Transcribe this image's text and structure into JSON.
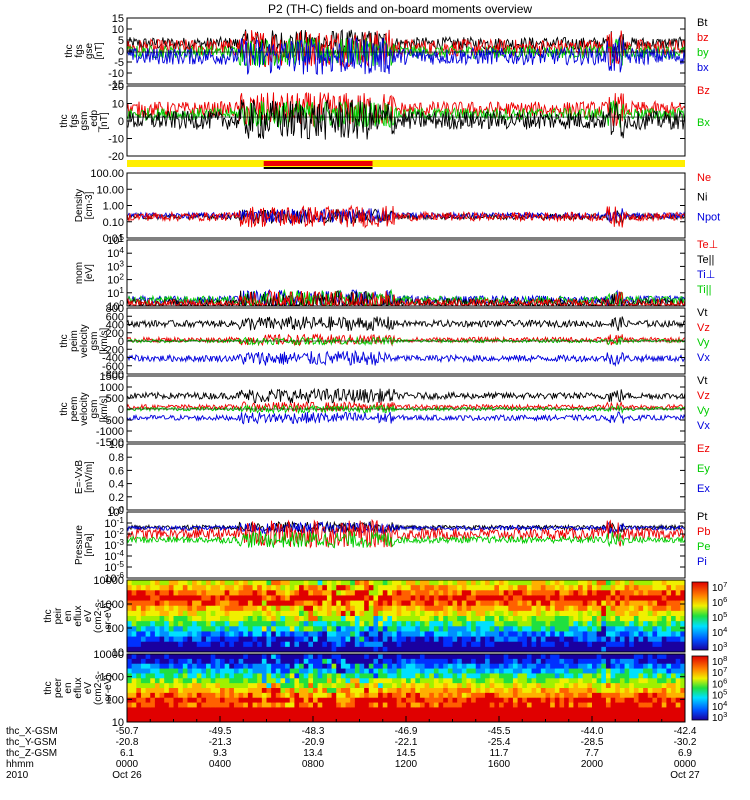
{
  "title": "P2 (TH-C) fields and on-board moments overview",
  "colors": {
    "black": "#000000",
    "red": "#ee0000",
    "green": "#00cc00",
    "blue": "#0000dd",
    "yellow": "#ffee00",
    "frame": "#000000"
  },
  "chart_data": [
    {
      "type": "line",
      "id": "p1",
      "ylabel": [
        "thc",
        "fgs",
        "gse",
        "[nT]"
      ],
      "yticks": [
        "15",
        "10",
        "5",
        "0",
        "-5",
        "-10",
        "-15"
      ],
      "ylim": [
        -15,
        16
      ],
      "legend": [
        {
          "name": "Bt",
          "color": "#000000"
        },
        {
          "name": "bz",
          "color": "#ee0000"
        },
        {
          "name": "by",
          "color": "#00cc00"
        },
        {
          "name": "bx",
          "color": "#0000dd"
        }
      ],
      "series": [
        {
          "name": "Bt",
          "color": "#000000",
          "base": 4,
          "amp": 3
        },
        {
          "name": "bz",
          "color": "#ee0000",
          "base": 2,
          "amp": 4
        },
        {
          "name": "by",
          "color": "#00cc00",
          "base": 0,
          "amp": 3
        },
        {
          "name": "bx",
          "color": "#0000dd",
          "base": -2,
          "amp": 4
        }
      ]
    },
    {
      "type": "line",
      "id": "p2",
      "ylabel": [
        "thc",
        "fgs",
        "gsm",
        "_edp",
        "[nT]"
      ],
      "yticks": [
        "20",
        "10",
        "0",
        "-10",
        "-20"
      ],
      "ylim": [
        -25,
        20
      ],
      "legend": [
        {
          "name": "Bz",
          "color": "#ee0000"
        },
        {
          "name": "Bx",
          "color": "#00cc00"
        }
      ],
      "series": [
        {
          "name": "Bz",
          "color": "#ee0000",
          "base": 5,
          "amp": 5
        },
        {
          "name": "Bx",
          "color": "#00cc00",
          "base": 2,
          "amp": 4
        },
        {
          "name": "B",
          "color": "#000000",
          "base": -2,
          "amp": 6
        }
      ]
    },
    {
      "type": "line",
      "id": "p3",
      "ylabel": [
        "Density",
        "[cm-3]"
      ],
      "scale": "log",
      "yticks": [
        "100.00",
        "10.00",
        "1.00",
        "0.10",
        "0.01"
      ],
      "ylim": [
        0.01,
        300
      ],
      "legend": [
        {
          "name": "Ne",
          "color": "#ee0000"
        },
        {
          "name": "Ni",
          "color": "#000000"
        },
        {
          "name": "Npot",
          "color": "#0000dd"
        }
      ],
      "series": [
        {
          "name": "Ni",
          "color": "#000000",
          "base": 0.3,
          "amp": 0.2
        },
        {
          "name": "Npot",
          "color": "#0000dd",
          "base": 0.35,
          "amp": 0.2
        },
        {
          "name": "Ne",
          "color": "#ee0000",
          "base": 0.3,
          "amp": 0.3
        }
      ]
    },
    {
      "type": "line",
      "id": "p4",
      "ylabel": [
        "mom",
        "[eV]"
      ],
      "scale": "log",
      "yticks": [
        "10^5",
        "10^4",
        "10^3",
        "10^2",
        "10^1",
        "10^0"
      ],
      "ylim": [
        1,
        100000
      ],
      "legend": [
        {
          "name": "Te⊥",
          "color": "#ee0000"
        },
        {
          "name": "Te||",
          "color": "#000000"
        },
        {
          "name": "Ti⊥",
          "color": "#0000dd"
        },
        {
          "name": "Ti||",
          "color": "#00cc00"
        }
      ],
      "series": [
        {
          "name": "Ti⊥",
          "color": "#0000dd",
          "base": 3.0,
          "amp": 0.3
        },
        {
          "name": "Ti||",
          "color": "#00cc00",
          "base": 2.8,
          "amp": 0.3
        },
        {
          "name": "Te||",
          "color": "#000000",
          "base": 1.5,
          "amp": 0.4
        },
        {
          "name": "Te⊥",
          "color": "#ee0000",
          "base": 1.4,
          "amp": 0.4
        }
      ]
    },
    {
      "type": "line",
      "id": "p5",
      "ylabel": [
        "thc",
        "peim",
        "velocity",
        "gsm",
        "[km/s]"
      ],
      "yticks": [
        "800",
        "600",
        "400",
        "200",
        "0",
        "-200",
        "-400",
        "-600",
        "-800"
      ],
      "ylim": [
        -800,
        800
      ],
      "legend": [
        {
          "name": "Vt",
          "color": "#000000"
        },
        {
          "name": "Vz",
          "color": "#ee0000"
        },
        {
          "name": "Vy",
          "color": "#00cc00"
        },
        {
          "name": "Vx",
          "color": "#0000dd"
        }
      ],
      "series": [
        {
          "name": "Vt",
          "color": "#000000",
          "base": 420,
          "amp": 80
        },
        {
          "name": "Vz",
          "color": "#ee0000",
          "base": 30,
          "amp": 60
        },
        {
          "name": "Vy",
          "color": "#00cc00",
          "base": 0,
          "amp": 40
        },
        {
          "name": "Vx",
          "color": "#0000dd",
          "base": -420,
          "amp": 80
        }
      ]
    },
    {
      "type": "line",
      "id": "p6",
      "ylabel": [
        "thc",
        "peem",
        "velocity",
        "gsm",
        "[km/s]"
      ],
      "yticks": [
        "1500",
        "1000",
        "500",
        "0",
        "-500",
        "-1000",
        "-1500"
      ],
      "ylim": [
        -1500,
        1500
      ],
      "legend": [
        {
          "name": "Vt",
          "color": "#000000"
        },
        {
          "name": "Vz",
          "color": "#ee0000"
        },
        {
          "name": "Vy",
          "color": "#00cc00"
        },
        {
          "name": "Vx",
          "color": "#0000dd"
        }
      ],
      "series": [
        {
          "name": "Vt",
          "color": "#000000",
          "base": 600,
          "amp": 150
        },
        {
          "name": "Vz",
          "color": "#ee0000",
          "base": 100,
          "amp": 100
        },
        {
          "name": "Vy",
          "color": "#00cc00",
          "base": 0,
          "amp": 80
        },
        {
          "name": "Vx",
          "color": "#0000dd",
          "base": -400,
          "amp": 120
        }
      ]
    },
    {
      "type": "line",
      "id": "p7",
      "ylabel": [
        "E=-VxB",
        "[mV/m]"
      ],
      "yticks": [
        "1.0",
        "0.8",
        "0.6",
        "0.4",
        "0.2",
        "0.0"
      ],
      "ylim": [
        0,
        1
      ],
      "legend": [
        {
          "name": "Ez",
          "color": "#ee0000"
        },
        {
          "name": "Ey",
          "color": "#00cc00"
        },
        {
          "name": "Ex",
          "color": "#0000dd"
        }
      ],
      "series": []
    },
    {
      "type": "line",
      "id": "p8",
      "ylabel": [
        "Pressure",
        "[nPa]"
      ],
      "scale": "log",
      "yticks": [
        "10^0",
        "10^-1",
        "10^-2",
        "10^-3",
        "10^-4",
        "10^-5",
        "10^-6"
      ],
      "ylim": [
        1e-06,
        1
      ],
      "legend": [
        {
          "name": "Pt",
          "color": "#000000"
        },
        {
          "name": "Pb",
          "color": "#ee0000"
        },
        {
          "name": "Pe",
          "color": "#00cc00"
        },
        {
          "name": "Pi",
          "color": "#0000dd"
        }
      ],
      "series": [
        {
          "name": "Pt",
          "color": "#000000",
          "base": 0.04,
          "amp": 0.2
        },
        {
          "name": "Pi",
          "color": "#0000dd",
          "base": 0.035,
          "amp": 0.2
        },
        {
          "name": "Pb",
          "color": "#ee0000",
          "base": 0.01,
          "amp": 0.5
        },
        {
          "name": "Pe",
          "color": "#00cc00",
          "base": 0.003,
          "amp": 0.3
        }
      ]
    },
    {
      "type": "heatmap",
      "id": "p9",
      "ylabel": [
        "thc",
        "peir",
        "en",
        "eflux",
        "eV",
        "(cm2-s-",
        "sr-eV)"
      ],
      "yticks": [
        "10000",
        "1000",
        "100",
        "10"
      ],
      "ylim": [
        5,
        30000
      ],
      "scale": "log",
      "colorbar": [
        "10^7",
        "10^6",
        "10^5",
        "10^4",
        "10^3"
      ],
      "band_center": 3.2
    },
    {
      "type": "heatmap",
      "id": "p10",
      "ylabel": [
        "thc",
        "peer",
        "en",
        "eflux",
        "eV",
        "(cm2-s-",
        "sr-eV)"
      ],
      "yticks": [
        "10000",
        "1000",
        "100",
        "10"
      ],
      "ylim": [
        5,
        30000
      ],
      "scale": "log",
      "colorbar": [
        "10^8",
        "10^7",
        "10^6",
        "10^5",
        "10^4",
        "10^3"
      ],
      "band_center": 1.3
    }
  ],
  "time_axis": {
    "rows": [
      {
        "label": "thc_X-GSM",
        "values": [
          "-50.7",
          "-49.5",
          "-48.3",
          "-46.9",
          "-45.5",
          "-44.0",
          "-42.4"
        ]
      },
      {
        "label": "thc_Y-GSM",
        "values": [
          "-20.8",
          "-21.3",
          "-20.9",
          "-22.1",
          "-25.4",
          "-28.5",
          "-30.2"
        ]
      },
      {
        "label": "thc_Z-GSM",
        "values": [
          "6.1",
          "9.3",
          "13.4",
          "14.5",
          "11.7",
          "7.7",
          "6.9"
        ]
      },
      {
        "label": "hhmm",
        "values": [
          "0000",
          "0400",
          "0800",
          "1200",
          "1600",
          "2000",
          "0000"
        ]
      },
      {
        "label": "2010",
        "values": [
          "Oct 26",
          "",
          "",
          "",
          "",
          "",
          "Oct 27"
        ]
      }
    ]
  },
  "status_bar": {
    "yellow_ranges": [
      [
        0,
        0.245
      ],
      [
        0.44,
        1
      ]
    ],
    "red_ranges": [
      [
        0.245,
        0.44
      ]
    ]
  }
}
